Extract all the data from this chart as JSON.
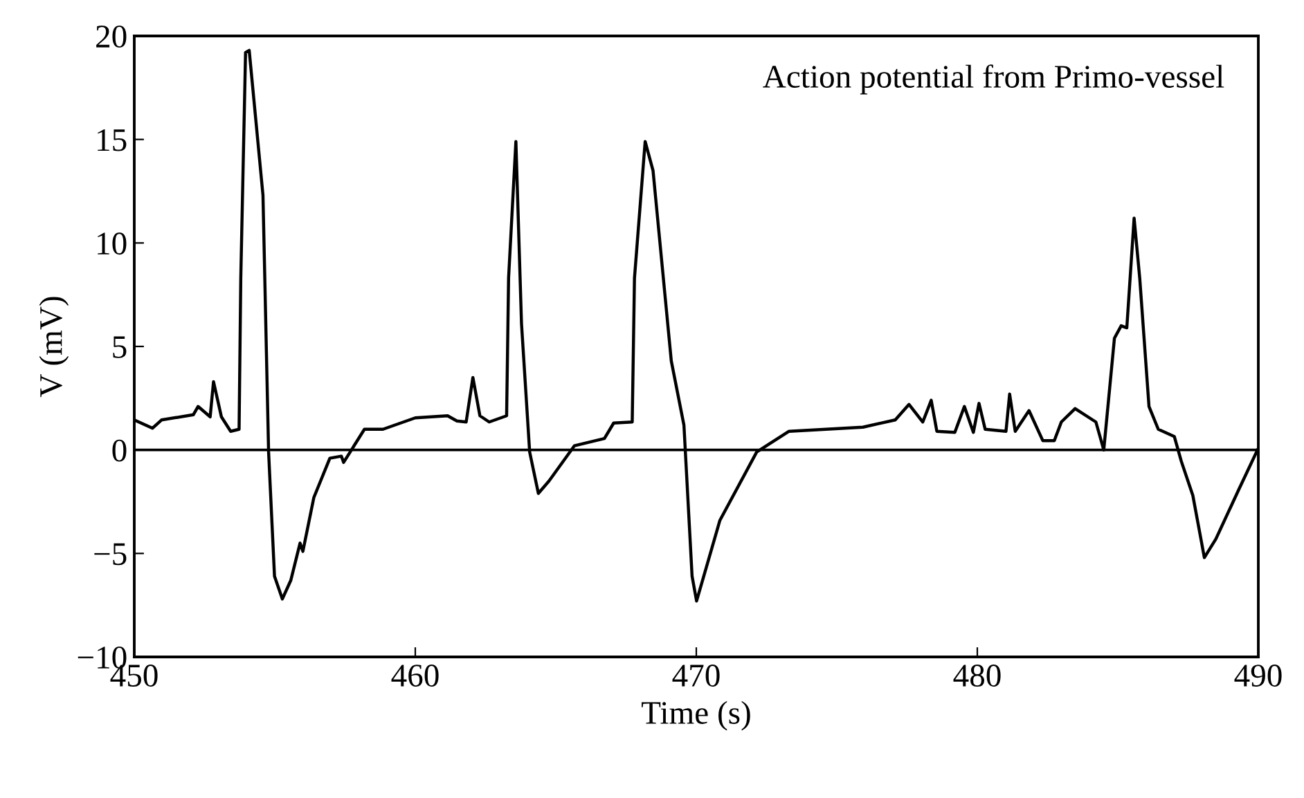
{
  "chart_data": {
    "type": "line",
    "xlabel": "Time (s)",
    "ylabel": "V (mV)",
    "annotations": [
      "Action potential from Primo-vessel"
    ],
    "series": [
      {
        "color": "#000000",
        "x": [
          450,
          450.65,
          450.97,
          452.1,
          452.27,
          452.7,
          452.82,
          453.1,
          453.43,
          453.73,
          453.79,
          453.96,
          454.09,
          454.58,
          454.78,
          454.99,
          455.27,
          455.57,
          455.9,
          456.0,
          456.39,
          456.96,
          457.37,
          457.45,
          458.19,
          458.85,
          460.0,
          461.15,
          461.48,
          461.81,
          462.05,
          462.3,
          462.63,
          463.25,
          463.32,
          463.58,
          463.78,
          464.07,
          464.38,
          464.76,
          465.66,
          466.73,
          467.06,
          467.72,
          467.8,
          468.18,
          468.46,
          469.11,
          469.56,
          469.85,
          470.01,
          470.84,
          472.15,
          473.3,
          475.93,
          477.08,
          477.57,
          478.06,
          478.36,
          478.56,
          479.2,
          479.54,
          479.86,
          480.06,
          480.28,
          481.02,
          481.15,
          481.35,
          481.84,
          482.33,
          482.74,
          482.99,
          483.48,
          484.22,
          484.5,
          484.88,
          485.12,
          485.32,
          485.58,
          485.78,
          486.11,
          486.44,
          487.01,
          487.26,
          487.67,
          488.08,
          488.49,
          489.31,
          489.97
        ],
        "values": [
          1.45,
          1.05,
          1.45,
          1.7,
          2.1,
          1.6,
          3.3,
          1.6,
          0.9,
          1.0,
          8.3,
          19.2,
          19.3,
          12.3,
          -0.1,
          -6.1,
          -7.2,
          -6.3,
          -4.5,
          -4.9,
          -2.3,
          -0.4,
          -0.3,
          -0.6,
          1.0,
          1.0,
          1.55,
          1.65,
          1.4,
          1.35,
          3.5,
          1.65,
          1.35,
          1.65,
          8.3,
          14.9,
          6.1,
          -0.1,
          -2.1,
          -1.5,
          0.2,
          0.55,
          1.3,
          1.35,
          8.3,
          14.9,
          13.5,
          4.3,
          1.2,
          -6.1,
          -7.3,
          -3.4,
          -0.1,
          0.9,
          1.1,
          1.45,
          2.2,
          1.35,
          2.4,
          0.9,
          0.85,
          2.1,
          0.85,
          2.25,
          1.0,
          0.9,
          2.7,
          0.9,
          1.9,
          0.45,
          0.45,
          1.35,
          2.0,
          1.35,
          0.0,
          5.4,
          6.0,
          5.9,
          11.2,
          8.3,
          2.1,
          1.0,
          0.65,
          -0.55,
          -2.2,
          -5.2,
          -4.3,
          -1.9,
          0.0
        ]
      }
    ],
    "xlim": [
      450,
      490
    ],
    "xticks": [
      450,
      460,
      470,
      480,
      490
    ],
    "ylim": [
      -10,
      20
    ],
    "yticks": [
      {
        "value": -10,
        "label": "−10"
      },
      {
        "value": -5,
        "label": "−5"
      },
      0,
      5,
      10,
      15,
      20
    ],
    "ref_lines": [
      {
        "axis": "y",
        "value": 0,
        "color": "#000000"
      }
    ],
    "grid": false,
    "legend": false,
    "marker": "none",
    "line_style": "solid"
  }
}
